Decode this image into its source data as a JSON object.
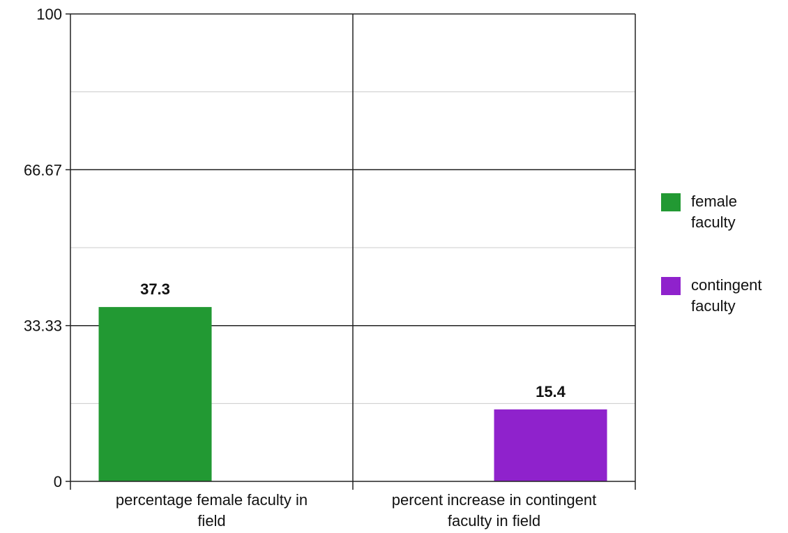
{
  "chart_data": {
    "type": "bar",
    "categories": [
      [
        "percentage female faculty in",
        "field"
      ],
      [
        "percent increase in contingent",
        "faculty in field"
      ]
    ],
    "series": [
      {
        "name": "female faculty",
        "legend_lines": [
          "female",
          "faculty"
        ],
        "color": "#229933",
        "values": [
          37.3,
          null
        ]
      },
      {
        "name": "contingent faculty",
        "legend_lines": [
          "contingent",
          "faculty"
        ],
        "color": "#8f22cc",
        "values": [
          null,
          15.4
        ]
      }
    ],
    "ylim": [
      0,
      100
    ],
    "yticks": [
      "0",
      "33.33",
      "66.67",
      "100"
    ],
    "minor_gridlines": true,
    "legend_position": "right",
    "title": "",
    "xlabel": "",
    "ylabel": ""
  }
}
